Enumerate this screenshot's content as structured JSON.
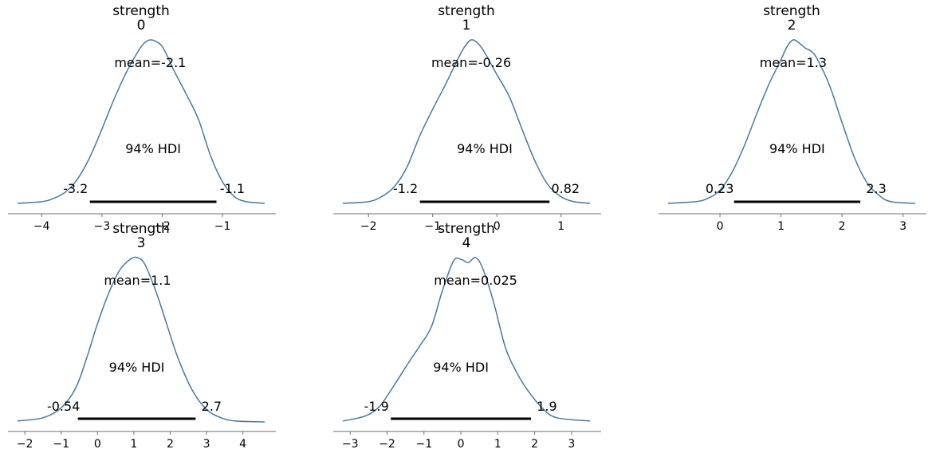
{
  "figure": {
    "curve_color": "#4a78a0",
    "hdi_color": "#000000",
    "axis_color": "#6e6e6e"
  },
  "chart_data": [
    {
      "type": "area",
      "title": "strength\n0",
      "xlim": [
        -4.4,
        -0.3
      ],
      "xticks": [
        -4,
        -3,
        -2,
        -1
      ],
      "xtick_labels": [
        "−4",
        "−3",
        "−2",
        "−1"
      ],
      "mean_label": "mean=-2.1",
      "hdi_label": "94% HDI",
      "hdi": [
        -3.2,
        -1.1
      ],
      "hdi_labels": [
        "-3.2",
        "-1.1"
      ],
      "density": {
        "x": [
          -4.4,
          -4.0,
          -3.8,
          -3.6,
          -3.4,
          -3.2,
          -3.0,
          -2.8,
          -2.6,
          -2.4,
          -2.3,
          -2.2,
          -2.1,
          -2.0,
          -1.9,
          -1.8,
          -1.6,
          -1.4,
          -1.2,
          -1.0,
          -0.8,
          -0.6,
          -0.3
        ],
        "y": [
          0.01,
          0.02,
          0.04,
          0.08,
          0.16,
          0.29,
          0.46,
          0.64,
          0.8,
          0.93,
          0.98,
          1.0,
          0.99,
          0.96,
          0.89,
          0.81,
          0.67,
          0.52,
          0.3,
          0.14,
          0.05,
          0.02,
          0.01
        ]
      }
    },
    {
      "type": "area",
      "title": "strength\n1",
      "xlim": [
        -2.4,
        1.45
      ],
      "xticks": [
        -2,
        -1,
        0,
        1
      ],
      "xtick_labels": [
        "−2",
        "−1",
        "0",
        "1"
      ],
      "mean_label": "mean=-0.26",
      "hdi_label": "94% HDI",
      "hdi": [
        -1.2,
        0.82
      ],
      "hdi_labels": [
        "-1.2",
        "0.82"
      ],
      "density": {
        "x": [
          -2.4,
          -2.0,
          -1.8,
          -1.6,
          -1.4,
          -1.2,
          -1.0,
          -0.8,
          -0.6,
          -0.5,
          -0.4,
          -0.3,
          -0.2,
          -0.1,
          0.0,
          0.2,
          0.4,
          0.6,
          0.8,
          1.0,
          1.2,
          1.45
        ],
        "y": [
          0.01,
          0.02,
          0.05,
          0.11,
          0.23,
          0.42,
          0.58,
          0.73,
          0.89,
          0.96,
          1.0,
          0.98,
          0.93,
          0.86,
          0.79,
          0.65,
          0.45,
          0.26,
          0.12,
          0.05,
          0.02,
          0.01
        ]
      }
    },
    {
      "type": "area",
      "title": "strength\n2",
      "xlim": [
        -0.85,
        3.2
      ],
      "xticks": [
        0,
        1,
        2,
        3
      ],
      "xtick_labels": [
        "0",
        "1",
        "2",
        "3"
      ],
      "mean_label": "mean=1.3",
      "hdi_label": "94% HDI",
      "hdi": [
        0.23,
        2.3
      ],
      "hdi_labels": [
        "0.23",
        "2.3"
      ],
      "density": {
        "x": [
          -0.85,
          -0.4,
          -0.2,
          0.0,
          0.2,
          0.4,
          0.6,
          0.8,
          1.0,
          1.1,
          1.2,
          1.3,
          1.4,
          1.5,
          1.6,
          1.8,
          2.0,
          2.2,
          2.4,
          2.6,
          2.8,
          3.2
        ],
        "y": [
          0.01,
          0.02,
          0.04,
          0.09,
          0.2,
          0.36,
          0.55,
          0.73,
          0.88,
          0.96,
          1.0,
          0.98,
          0.95,
          0.93,
          0.88,
          0.72,
          0.5,
          0.29,
          0.14,
          0.06,
          0.02,
          0.01
        ]
      }
    },
    {
      "type": "area",
      "title": "strength\n3",
      "xlim": [
        -2.2,
        4.6
      ],
      "xticks": [
        -2,
        -1,
        0,
        1,
        2,
        3,
        4
      ],
      "xtick_labels": [
        "−2",
        "−1",
        "0",
        "1",
        "2",
        "3",
        "4"
      ],
      "mean_label": "mean=1.1",
      "hdi_label": "94% HDI",
      "hdi": [
        -0.54,
        2.7
      ],
      "hdi_labels": [
        "-0.54",
        "2.7"
      ],
      "density": {
        "x": [
          -2.2,
          -1.5,
          -1.0,
          -0.6,
          -0.3,
          0.0,
          0.3,
          0.6,
          0.9,
          1.1,
          1.3,
          1.6,
          1.9,
          2.2,
          2.6,
          3.0,
          3.4,
          3.8,
          4.6
        ],
        "y": [
          0.01,
          0.03,
          0.09,
          0.21,
          0.39,
          0.6,
          0.78,
          0.92,
          0.99,
          1.0,
          0.96,
          0.8,
          0.6,
          0.4,
          0.2,
          0.08,
          0.03,
          0.01,
          0.005
        ]
      }
    },
    {
      "type": "area",
      "title": "strength\n4",
      "xlim": [
        -3.2,
        3.5
      ],
      "xticks": [
        -3,
        -2,
        -1,
        0,
        1,
        2,
        3
      ],
      "xtick_labels": [
        "−3",
        "−2",
        "−1",
        "0",
        "1",
        "2",
        "3"
      ],
      "mean_label": "mean=0.025",
      "hdi_label": "94% HDI",
      "hdi": [
        -1.9,
        1.9
      ],
      "hdi_labels": [
        "-1.9",
        "1.9"
      ],
      "density": {
        "x": [
          -3.2,
          -2.6,
          -2.2,
          -1.8,
          -1.4,
          -1.1,
          -0.8,
          -0.5,
          -0.2,
          0.0,
          0.2,
          0.4,
          0.6,
          0.9,
          1.2,
          1.5,
          1.8,
          2.2,
          2.6,
          3.5
        ],
        "y": [
          0.01,
          0.04,
          0.1,
          0.23,
          0.37,
          0.47,
          0.58,
          0.8,
          0.98,
          0.99,
          0.97,
          1.0,
          0.93,
          0.72,
          0.46,
          0.31,
          0.2,
          0.09,
          0.03,
          0.01
        ]
      }
    }
  ]
}
